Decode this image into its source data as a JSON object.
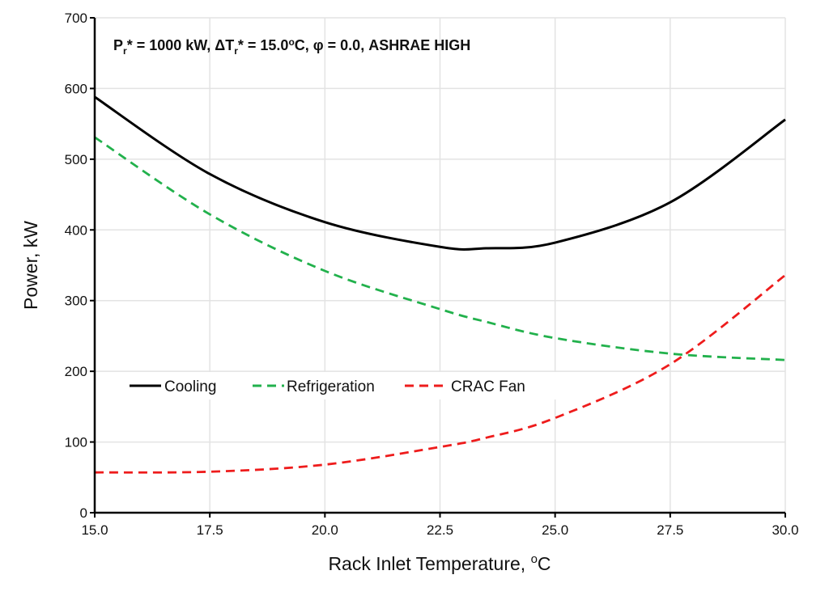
{
  "chart_data": {
    "type": "line",
    "title_parts": {
      "p": "P",
      "p_sub": "r",
      "p_rest": "* = 1000 kW, ",
      "dt": "ΔT",
      "dt_sub": "r",
      "dt_rest": "* = 15.0",
      "deg": "o",
      "rest": "C, φ = 0.0, ASHRAE HIGH"
    },
    "xlabel_main": "Rack Inlet Temperature, ",
    "xlabel_deg": "o",
    "xlabel_unit": "C",
    "ylabel": "Power, kW",
    "xlim": [
      15.0,
      30.0
    ],
    "ylim": [
      0,
      700
    ],
    "xticks": [
      "15.0",
      "17.5",
      "20.0",
      "22.5",
      "25.0",
      "27.5",
      "30.0"
    ],
    "yticks": [
      "0",
      "100",
      "200",
      "300",
      "400",
      "500",
      "600",
      "700"
    ],
    "grid": true,
    "legend_position": "center-left",
    "x": [
      15.0,
      17.5,
      20.0,
      22.5,
      23.5,
      25.0,
      27.5,
      30.0
    ],
    "series": [
      {
        "name": "Cooling",
        "color": "#000000",
        "dash": "solid",
        "values": [
          588,
          479,
          411,
          376,
          374,
          382,
          439,
          556
        ]
      },
      {
        "name": "Refrigeration",
        "color": "#22b14c",
        "dash": "dashed",
        "values": [
          531,
          422,
          342,
          288,
          270,
          247,
          225,
          216
        ]
      },
      {
        "name": "CRAC Fan",
        "color": "#ee1c1c",
        "dash": "dashed",
        "values": [
          57,
          58,
          68,
          93,
          106,
          134,
          210,
          336
        ]
      }
    ]
  }
}
